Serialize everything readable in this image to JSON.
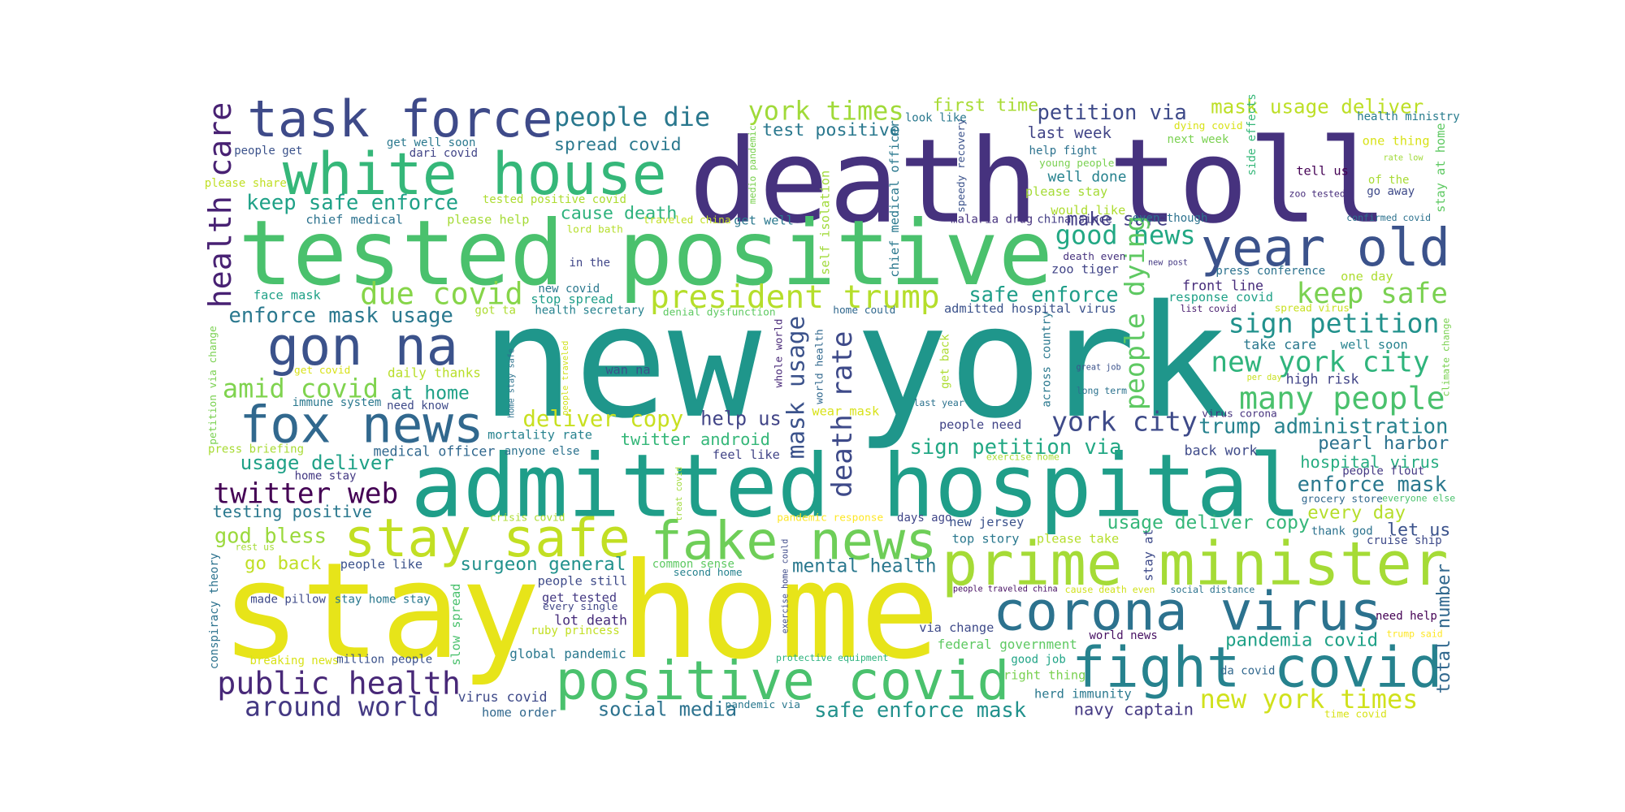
{
  "words": [
    "new york",
    "death toll",
    "tested positive",
    "admitted hospital",
    "stay home",
    "white house",
    "task force",
    "prime minister",
    "fake news",
    "stay safe",
    "corona virus",
    "fight covid",
    "positive covid",
    "gon na",
    "fox news",
    "year old",
    "public health",
    "around world",
    "twitter web",
    "president trump",
    "due covid",
    "people die",
    "york times",
    "petition via",
    "mask usage deliver",
    "first time",
    "test positive",
    "spread covid",
    "keep safe enforce",
    "cause death",
    "health care",
    "good news",
    "make sure",
    "last week",
    "keep safe",
    "sign petition",
    "safe enforce",
    "people dying",
    "new york city",
    "many people",
    "trump administration",
    "york city",
    "enforce mask usage",
    "amid covid",
    "at home",
    "daily thanks",
    "deliver copy",
    "help us",
    "twitter android",
    "sign petition via",
    "pearl harbor",
    "hospital virus",
    "enforce mask",
    "every day",
    "usage deliver copy",
    "let us",
    "usage deliver",
    "testing positive",
    "god bless",
    "go back",
    "surgeon general",
    "mental health",
    "social media",
    "safe enforce mask",
    "navy captain",
    "new york times",
    "global pandemic",
    "federal government",
    "pandemia covid",
    "total number",
    "death rate",
    "mask usage",
    "people get",
    "get well soon",
    "dari covid",
    "please share",
    "tested positive covid",
    "chief medical",
    "please help",
    "lord bath",
    "get well",
    "in the",
    "new covid",
    "stop spread",
    "face mask",
    "got ta",
    "health secretary",
    "denial dysfunction",
    "home could",
    "admitted hospital virus",
    "zoo tiger",
    "death even",
    "would like",
    "even though",
    "malaria drug",
    "china since",
    "please stay",
    "well done",
    "young people",
    "help fight",
    "next week",
    "dying covid",
    "health ministry",
    "one thing",
    "rate low",
    "tell us",
    "of the",
    "zoo tested",
    "go away",
    "confirmed covid",
    "stay at home",
    "side effects",
    "look like",
    "medio pandemic",
    "chief medical officer",
    "speedy recovery",
    "self isolation",
    "traveled china",
    "press conference",
    "new post",
    "one day",
    "front line",
    "response covid",
    "list covid",
    "spread virus",
    "take care",
    "well soon",
    "climate change",
    "per day",
    "high risk",
    "virus corona",
    "back work",
    "people flout",
    "everyone else",
    "grocery store",
    "thank god",
    "cruise ship",
    "need help",
    "trump said",
    "da covid",
    "time covid",
    "social distance",
    "cause death even",
    "people traveled china",
    "stay at",
    "please take",
    "top story",
    "new jersey",
    "days ago",
    "pandemic response",
    "exercise home",
    "people need",
    "last year",
    "get back",
    "across country",
    "long term",
    "great job",
    "whole world",
    "world health",
    "wan na",
    "home stay safe",
    "people traveled",
    "wear mask",
    "feel like",
    "medical officer",
    "anyone else",
    "mortality rate",
    "need know",
    "immune system",
    "get covid",
    "petition via change",
    "press briefing",
    "home stay",
    "crisis covid",
    "treat covid",
    "rest us",
    "conspiracy theory",
    "made pillow",
    "stay home stay",
    "people like",
    "people still",
    "every single",
    "get tested",
    "lot death",
    "ruby princess",
    "common sense",
    "second home",
    "exercise home could",
    "slow spread",
    "breaking news",
    "million people",
    "protective equipment",
    "via change",
    "world news",
    "good job",
    "right thing",
    "herd immunity",
    "virus covid",
    "home order",
    "pandemic via"
  ]
}
